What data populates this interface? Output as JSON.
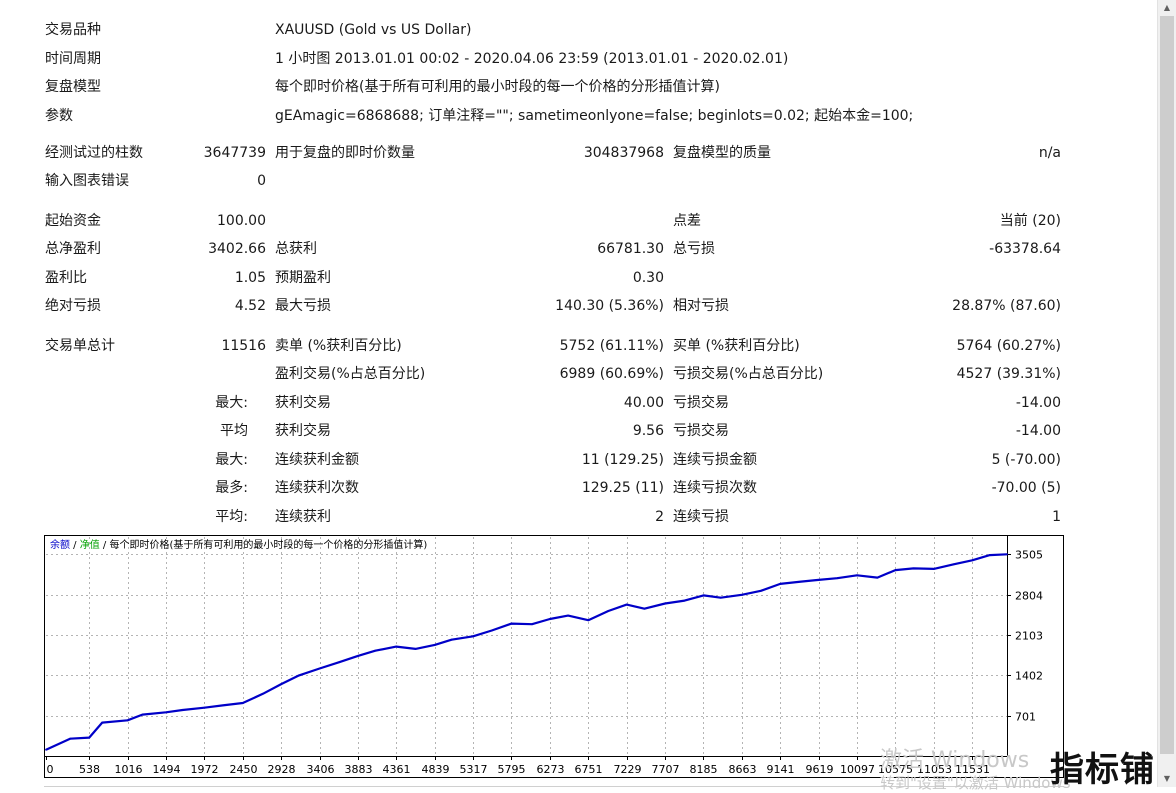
{
  "header": {
    "symbol_label": "交易品种",
    "symbol_value": "XAUUSD (Gold vs US Dollar)",
    "period_label": "时间周期",
    "period_value": "1 小时图 2013.01.01 00:02 - 2020.04.06 23:59 (2013.01.01 - 2020.02.01)",
    "model_label": "复盘模型",
    "model_value": "每个即时价格(基于所有可利用的最小时段的每一个价格的分形插值计算)",
    "params_label": "参数",
    "params_value": "gEAmagic=6868688; 订单注释=\"\"; sametimeonlyone=false; beginlots=0.02; 起始本金=100;"
  },
  "bars": {
    "bars_label": "经测试过的柱数",
    "bars_value": "3647739",
    "ticks_label": "用于复盘的即时价数量",
    "ticks_value": "304837968",
    "quality_label": "复盘模型的质量",
    "quality_value": "n/a",
    "errors_label": "输入图表错误",
    "errors_value": "0"
  },
  "stats": {
    "deposit_label": "起始资金",
    "deposit_value": "100.00",
    "spread_label": "点差",
    "spread_value": "当前 (20)",
    "net_label": "总净盈利",
    "net_value": "3402.66",
    "gross_profit_label": "总获利",
    "gross_profit_value": "66781.30",
    "gross_loss_label": "总亏损",
    "gross_loss_value": "-63378.64",
    "pf_label": "盈利比",
    "pf_value": "1.05",
    "expected_label": "预期盈利",
    "expected_value": "0.30",
    "abs_dd_label": "绝对亏损",
    "abs_dd_value": "4.52",
    "max_dd_label": "最大亏损",
    "max_dd_value": "140.30 (5.36%)",
    "rel_dd_label": "相对亏损",
    "rel_dd_value": "28.87% (87.60)"
  },
  "trades": {
    "total_label": "交易单总计",
    "total_value": "11516",
    "short_label": "卖单 (%获利百分比)",
    "short_value": "5752 (61.11%)",
    "long_label": "买单 (%获利百分比)",
    "long_value": "5764 (60.27%)",
    "profit_trades_label": "盈利交易(%占总百分比)",
    "profit_trades_value": "6989 (60.69%)",
    "loss_trades_label": "亏损交易(%占总百分比)",
    "loss_trades_value": "4527 (39.31%)",
    "largest_prefix": "最大:",
    "largest_profit_label": "获利交易",
    "largest_profit_value": "40.00",
    "largest_loss_label": "亏损交易",
    "largest_loss_value": "-14.00",
    "average_prefix": "平均",
    "average_profit_label": "获利交易",
    "average_profit_value": "9.56",
    "average_loss_label": "亏损交易",
    "average_loss_value": "-14.00",
    "max_consec_prefix": "最大:",
    "max_consec_wins_label": "连续获利金额",
    "max_consec_wins_value": "11 (129.25)",
    "max_consec_losses_label": "连续亏损金额",
    "max_consec_losses_value": "5 (-70.00)",
    "maximal_prefix": "最多:",
    "maximal_wins_label": "连续获利次数",
    "maximal_wins_value": "129.25 (11)",
    "maximal_losses_label": "连续亏损次数",
    "maximal_losses_value": "-70.00 (5)",
    "avg_consec_prefix": "平均:",
    "avg_consec_wins_label": "连续获利",
    "avg_consec_wins_value": "2",
    "avg_consec_losses_label": "连续亏损",
    "avg_consec_losses_value": "1"
  },
  "chart_legend": {
    "balance": "余额",
    "sep1": " / ",
    "equity": "净值",
    "sep2": " / ",
    "model": "每个即时价格(基于所有可利用的最小时段的每一个价格的分形插值计算)"
  },
  "chart_data": {
    "type": "line",
    "x_ticks": [
      0,
      538,
      1016,
      1494,
      1972,
      2450,
      2928,
      3406,
      3883,
      4361,
      4839,
      5317,
      5795,
      6273,
      6751,
      7229,
      7707,
      8185,
      8663,
      9141,
      9619,
      10097,
      10575,
      11053,
      11531
    ],
    "y_ticks": [
      701,
      1402,
      2103,
      2804,
      3505
    ],
    "xlim": [
      0,
      11964
    ],
    "ylim": [
      0,
      3805
    ],
    "series": [
      {
        "name": "余额",
        "color": "#0000c8",
        "x": [
          0,
          300,
          538,
          700,
          1016,
          1200,
          1494,
          1700,
          1972,
          2200,
          2450,
          2700,
          2928,
          3150,
          3406,
          3650,
          3883,
          4100,
          4361,
          4600,
          4839,
          5050,
          5317,
          5550,
          5795,
          6050,
          6273,
          6500,
          6751,
          7000,
          7229,
          7450,
          7707,
          7950,
          8185,
          8400,
          8663,
          8900,
          9141,
          9400,
          9619,
          9850,
          10097,
          10350,
          10575,
          10800,
          11053,
          11300,
          11531,
          11750,
          11964
        ],
        "values": [
          110,
          300,
          320,
          580,
          620,
          720,
          760,
          800,
          840,
          880,
          920,
          1080,
          1250,
          1400,
          1520,
          1630,
          1740,
          1830,
          1900,
          1860,
          1930,
          2020,
          2080,
          2180,
          2300,
          2290,
          2380,
          2440,
          2360,
          2520,
          2630,
          2560,
          2650,
          2700,
          2790,
          2750,
          2800,
          2870,
          2990,
          3030,
          3060,
          3090,
          3140,
          3100,
          3230,
          3260,
          3250,
          3330,
          3400,
          3490,
          3505
        ]
      }
    ]
  },
  "watermark": {
    "line1": "激活 Windows",
    "line2": "转到\"设置\"以激活 Windows",
    "brand": "指标铺"
  }
}
